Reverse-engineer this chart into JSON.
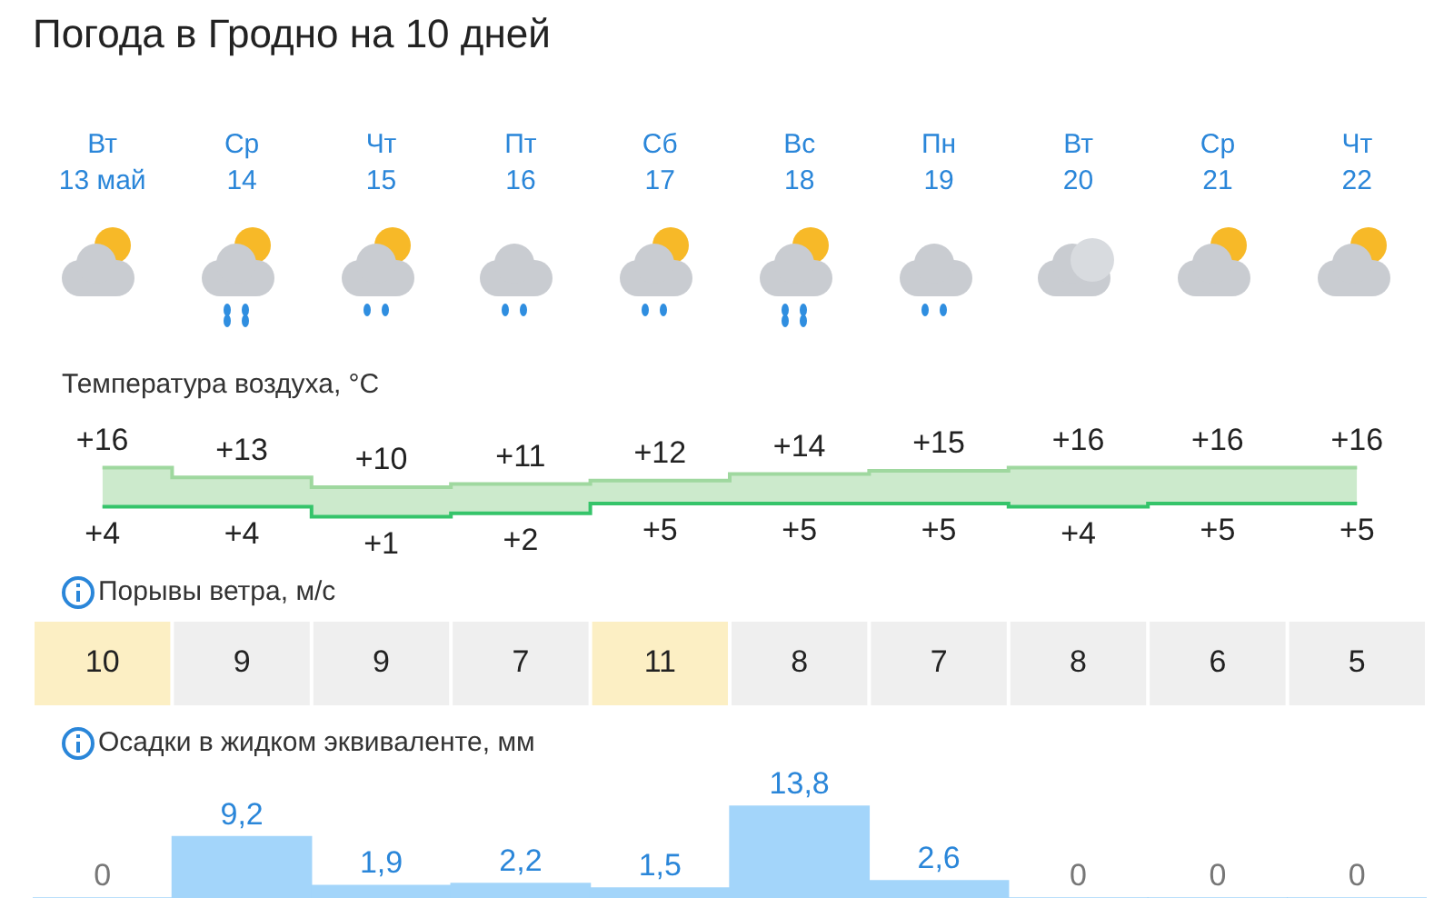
{
  "chart_data": [
    {
      "type": "step",
      "title": "Погода в Гродно на 10 дней",
      "ylabel": "Температура воздуха, °C",
      "tick_labels": "x",
      "categories": [
        "Вт\n13 май",
        "Ср\n14",
        "Чт\n15",
        "Пт\n16",
        "Сб\n17",
        "Вс\n18",
        "Пн\n19",
        "Вт\n20",
        "Ср\n21",
        "Чт\n22"
      ],
      "series": [
        {
          "color": "#9fd89f",
          "values": [
            16,
            13,
            10,
            11,
            12,
            14,
            15,
            16,
            16,
            16
          ],
          "lower": [
            4,
            4,
            1,
            2,
            5,
            5,
            5,
            4,
            5,
            5
          ],
          "upper": [
            16,
            13,
            10,
            11,
            12,
            14,
            15,
            16,
            16,
            16
          ],
          "value_labels": [
            "+16",
            "+13",
            "+10",
            "+11",
            "+12",
            "+14",
            "+15",
            "+16",
            "+16",
            "+16"
          ]
        },
        {
          "color": "#35c46a",
          "values": [
            4,
            4,
            1,
            2,
            5,
            5,
            5,
            4,
            5,
            5
          ],
          "value_labels": [
            "+4",
            "+4",
            "+1",
            "+2",
            "+5",
            "+5",
            "+5",
            "+4",
            "+5",
            "+5"
          ]
        }
      ]
    },
    {
      "type": "heatmap",
      "title": "Порывы ветра, м/с",
      "tick_labels": false,
      "data_labels": true,
      "categories": [
        null,
        null,
        null,
        null,
        null,
        null,
        null,
        null,
        null,
        null
      ],
      "y_categories": [
        null
      ],
      "cells": [
        [
          10,
          9,
          9,
          7,
          11,
          8,
          7,
          8,
          6,
          5
        ]
      ],
      "colors": [
        "#fcefc4",
        "#efefef",
        "#efefef",
        "#efefef",
        "#fcefc4",
        "#efefef",
        "#efefef",
        "#efefef",
        "#efefef",
        "#efefef"
      ]
    },
    {
      "type": "bar",
      "title": "Осадки в жидком эквиваленте, мм",
      "tick_labels": false,
      "color": "#a3d5fa",
      "categories": [
        null,
        null,
        null,
        null,
        null,
        null,
        null,
        null,
        null,
        null
      ],
      "values": [
        0,
        9.2,
        1.9,
        2.2,
        1.5,
        13.8,
        2.6,
        0,
        0,
        0
      ],
      "value_labels": [
        "0",
        "9,2",
        "1,9",
        "2,2",
        "1,5",
        "13,8",
        "2,6",
        "0",
        "0",
        "0"
      ]
    }
  ]
}
